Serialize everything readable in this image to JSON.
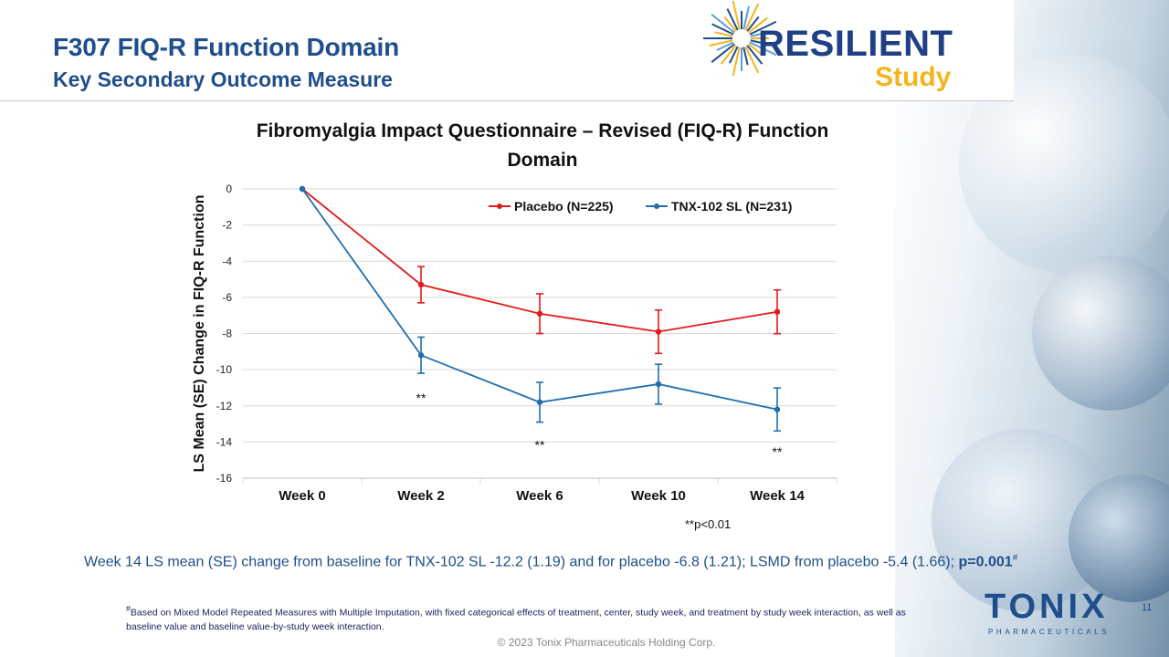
{
  "slide": {
    "title": "F307 FIQ-R Function Domain",
    "subtitle": "Key Secondary Outcome Measure",
    "logo_word": "RESILIENT",
    "logo_sub": "Study",
    "summary_text": "Week 14 LS mean (SE) change from baseline for TNX-102 SL -12.2 (1.19) and for placebo -6.8 (1.21); LSMD from placebo -5.4 (1.66);",
    "summary_pvalue": "p=0.001",
    "summary_mark": "#",
    "footnote_mark": "#",
    "footnote": "Based on Mixed Model Repeated Measures with Multiple Imputation, with fixed categorical effects of treatment, center, study week, and treatment by study week interaction, as well as baseline value and baseline value-by-study week interaction.",
    "company": "TONIX",
    "company_sub": "PHARMACEUTICALS",
    "page_number": "11",
    "copyright": "© 2023 Tonix Pharmaceuticals Holding Corp.",
    "brand_colors": {
      "navy": "#1f4e8c",
      "gold": "#f2b51d"
    }
  },
  "chart_data": {
    "type": "line",
    "title": "Fibromyalgia Impact Questionnaire – Revised (FIQ-R) Function Domain",
    "ylabel": "LS Mean (SE) Change in  FIQ-R Function",
    "xlabel": "",
    "categories": [
      "Week 0",
      "Week 2",
      "Week 6",
      "Week 10",
      "Week 14"
    ],
    "ylim": [
      -16,
      0
    ],
    "yticks": [
      "0",
      "-2",
      "-4",
      "-6",
      "-8",
      "-10",
      "-12",
      "-14",
      "-16"
    ],
    "grid": true,
    "legend_position": "top-right",
    "series": [
      {
        "name": "Placebo (N=225)",
        "color": "#e31a1c",
        "values": [
          0,
          -5.3,
          -6.9,
          -7.9,
          -6.8
        ],
        "errors": [
          0,
          1.0,
          1.1,
          1.2,
          1.21
        ]
      },
      {
        "name": "TNX-102 SL (N=231)",
        "color": "#1f6fb0",
        "values": [
          0,
          -9.2,
          -11.8,
          -10.8,
          -12.2
        ],
        "errors": [
          0,
          1.0,
          1.1,
          1.1,
          1.19
        ]
      }
    ],
    "significance": [
      {
        "category": "Week 2",
        "label": "**",
        "y": -11.8
      },
      {
        "category": "Week 6",
        "label": "**",
        "y": -14.4
      },
      {
        "category": "Week 14",
        "label": "**",
        "y": -14.8
      }
    ],
    "footnote": "**p<0.01"
  }
}
